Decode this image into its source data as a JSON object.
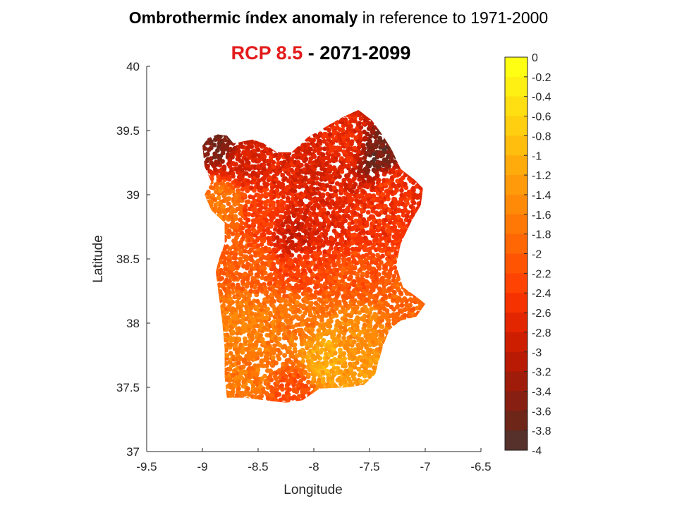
{
  "header": {
    "title_bold": "Ombrothermic índex anomaly",
    "title_rest": " in reference to 1971-2000",
    "scenario": "RCP 8.5",
    "separator": " -  ",
    "period": "2071-2099"
  },
  "chart_data": {
    "type": "scatter",
    "title": "Ombrothermic índex anomaly in reference to 1971-2000",
    "subtitle": "RCP 8.5 - 2071-2099",
    "xlabel": "Longitude",
    "ylabel": "Latitude",
    "xlim": [
      -9.5,
      -6.5
    ],
    "ylim": [
      37,
      40
    ],
    "xticks": [
      "-9.5",
      "-9",
      "-8.5",
      "-8",
      "-7.5",
      "-7",
      "-6.5"
    ],
    "yticks": [
      "37",
      "37.5",
      "38",
      "38.5",
      "39",
      "39.5",
      "40"
    ],
    "grid": false,
    "colorbar": {
      "range": [
        -4,
        0
      ],
      "ticks": [
        "0",
        "-0.2",
        "-0.4",
        "-0.6",
        "-0.8",
        "-1",
        "-1.2",
        "-1.4",
        "-1.6",
        "-1.8",
        "-2",
        "-2.2",
        "-2.4",
        "-2.6",
        "-2.8",
        "-3",
        "-3.2",
        "-3.4",
        "-3.6",
        "-3.8",
        "-4"
      ],
      "colors": [
        "#ffff14",
        "#fff014",
        "#ffdf12",
        "#ffcf10",
        "#ffbd0e",
        "#ffab0c",
        "#ff9a0a",
        "#ff8a08",
        "#ff7806",
        "#ff6604",
        "#ff5503",
        "#ff4302",
        "#f63300",
        "#e32600",
        "#cd1e00",
        "#b81a04",
        "#a01c0a",
        "#872012",
        "#6e2619",
        "#56302a"
      ]
    },
    "region_outline": [
      [
        -8.86,
        39.47
      ],
      [
        -8.78,
        39.46
      ],
      [
        -8.72,
        39.4
      ],
      [
        -8.55,
        39.43
      ],
      [
        -8.45,
        39.4
      ],
      [
        -8.33,
        39.33
      ],
      [
        -8.2,
        39.33
      ],
      [
        -8.05,
        39.45
      ],
      [
        -7.95,
        39.5
      ],
      [
        -7.85,
        39.55
      ],
      [
        -7.75,
        39.6
      ],
      [
        -7.6,
        39.66
      ],
      [
        -7.48,
        39.58
      ],
      [
        -7.38,
        39.46
      ],
      [
        -7.3,
        39.35
      ],
      [
        -7.22,
        39.2
      ],
      [
        -7.1,
        39.12
      ],
      [
        -7.02,
        39.05
      ],
      [
        -7.04,
        38.92
      ],
      [
        -7.12,
        38.8
      ],
      [
        -7.22,
        38.62
      ],
      [
        -7.26,
        38.45
      ],
      [
        -7.2,
        38.28
      ],
      [
        -7.07,
        38.2
      ],
      [
        -7.0,
        38.15
      ],
      [
        -7.08,
        38.05
      ],
      [
        -7.22,
        38.02
      ],
      [
        -7.32,
        37.95
      ],
      [
        -7.38,
        37.82
      ],
      [
        -7.45,
        37.6
      ],
      [
        -7.55,
        37.52
      ],
      [
        -7.7,
        37.5
      ],
      [
        -7.95,
        37.49
      ],
      [
        -8.1,
        37.4
      ],
      [
        -8.25,
        37.38
      ],
      [
        -8.45,
        37.4
      ],
      [
        -8.62,
        37.42
      ],
      [
        -8.78,
        37.42
      ],
      [
        -8.8,
        37.58
      ],
      [
        -8.8,
        37.8
      ],
      [
        -8.82,
        38.0
      ],
      [
        -8.85,
        38.2
      ],
      [
        -8.88,
        38.4
      ],
      [
        -8.85,
        38.5
      ],
      [
        -8.8,
        38.62
      ],
      [
        -8.8,
        38.78
      ],
      [
        -8.92,
        38.88
      ],
      [
        -8.98,
        39.0
      ],
      [
        -8.92,
        39.1
      ],
      [
        -8.98,
        39.22
      ],
      [
        -9.0,
        39.38
      ],
      [
        -8.95,
        39.44
      ]
    ],
    "value_zones": [
      {
        "lon": -8.82,
        "lat": 39.42,
        "value": -3.6
      },
      {
        "lon": -7.42,
        "lat": 39.32,
        "value": -3.7
      },
      {
        "lon": -8.62,
        "lat": 39.28,
        "value": -2.8
      },
      {
        "lon": -8.3,
        "lat": 39.2,
        "value": -2.7
      },
      {
        "lon": -8.0,
        "lat": 39.28,
        "value": -2.8
      },
      {
        "lon": -7.7,
        "lat": 39.4,
        "value": -2.6
      },
      {
        "lon": -7.3,
        "lat": 39.05,
        "value": -2.5
      },
      {
        "lon": -8.82,
        "lat": 38.92,
        "value": -1.7
      },
      {
        "lon": -8.45,
        "lat": 38.85,
        "value": -2.4
      },
      {
        "lon": -8.18,
        "lat": 38.68,
        "value": -2.9
      },
      {
        "lon": -7.9,
        "lat": 38.8,
        "value": -2.7
      },
      {
        "lon": -7.55,
        "lat": 38.75,
        "value": -2.5
      },
      {
        "lon": -8.55,
        "lat": 38.45,
        "value": -2.0
      },
      {
        "lon": -8.1,
        "lat": 38.4,
        "value": -2.3
      },
      {
        "lon": -7.6,
        "lat": 38.35,
        "value": -2.1
      },
      {
        "lon": -7.15,
        "lat": 38.1,
        "value": -1.9
      },
      {
        "lon": -8.6,
        "lat": 38.0,
        "value": -1.6
      },
      {
        "lon": -8.15,
        "lat": 38.05,
        "value": -1.7
      },
      {
        "lon": -7.6,
        "lat": 37.95,
        "value": -1.5
      },
      {
        "lon": -8.55,
        "lat": 37.65,
        "value": -1.7
      },
      {
        "lon": -7.9,
        "lat": 37.72,
        "value": -1.1
      },
      {
        "lon": -7.55,
        "lat": 37.62,
        "value": -1.3
      },
      {
        "lon": -8.2,
        "lat": 37.45,
        "value": -2.2
      }
    ]
  }
}
